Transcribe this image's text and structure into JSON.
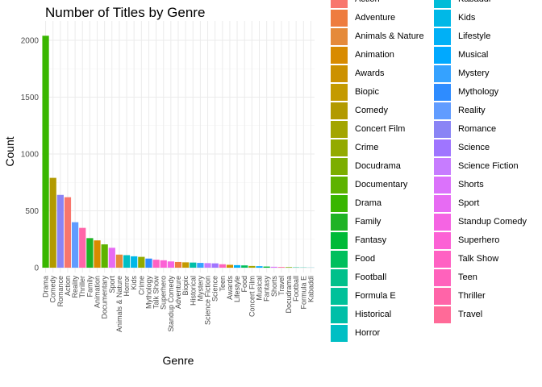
{
  "chart_data": {
    "type": "bar",
    "title": "Number of Titles by Genre",
    "xlabel": "Genre",
    "ylabel": "Count",
    "ylim": [
      0,
      2100
    ],
    "yticks": [
      0,
      500,
      1000,
      1500,
      2000
    ],
    "grid": true,
    "legend_position": "right",
    "categories": [
      "Drama",
      "Comedy",
      "Romance",
      "Action",
      "Reality",
      "Thriller",
      "Family",
      "Animation",
      "Documentary",
      "Sport",
      "Animals & Nature",
      "Horror",
      "Kids",
      "Crime",
      "Mythology",
      "Talk Show",
      "Superhero",
      "Standup Comedy",
      "Adventure",
      "Biopic",
      "Historical",
      "Mystery",
      "Science Fiction",
      "Science",
      "Teen",
      "Awards",
      "Lifestyle",
      "Food",
      "Concert Film",
      "Musical",
      "Fantasy",
      "Shorts",
      "Travel",
      "Docudrama",
      "Football",
      "Formula E",
      "Kabaddi"
    ],
    "values": [
      2040,
      790,
      640,
      620,
      400,
      350,
      260,
      240,
      205,
      175,
      115,
      110,
      100,
      95,
      80,
      70,
      65,
      55,
      50,
      47,
      45,
      42,
      40,
      38,
      30,
      25,
      22,
      20,
      15,
      13,
      10,
      8,
      6,
      5,
      3,
      2,
      1
    ],
    "legend": [
      {
        "label": "Action",
        "color": "#F8766D"
      },
      {
        "label": "Adventure",
        "color": "#EE7C3F"
      },
      {
        "label": "Animals & Nature",
        "color": "#E58A3A"
      },
      {
        "label": "Animation",
        "color": "#D88B00"
      },
      {
        "label": "Awards",
        "color": "#CC9100"
      },
      {
        "label": "Biopic",
        "color": "#C49A00"
      },
      {
        "label": "Comedy",
        "color": "#B29A00"
      },
      {
        "label": "Concert Film",
        "color": "#A3A500"
      },
      {
        "label": "Crime",
        "color": "#93AA00"
      },
      {
        "label": "Docudrama",
        "color": "#7CAE00"
      },
      {
        "label": "Documentary",
        "color": "#5EB300"
      },
      {
        "label": "Drama",
        "color": "#39B600"
      },
      {
        "label": "Family",
        "color": "#1FB326"
      },
      {
        "label": "Fantasy",
        "color": "#00BA38"
      },
      {
        "label": "Food",
        "color": "#00BF5D"
      },
      {
        "label": "Football",
        "color": "#00C08B"
      },
      {
        "label": "Formula E",
        "color": "#00C19A"
      },
      {
        "label": "Historical",
        "color": "#00BFA8"
      },
      {
        "label": "Horror",
        "color": "#00BFC4"
      },
      {
        "label": "Kabaddi",
        "color": "#00BCD8"
      },
      {
        "label": "Kids",
        "color": "#00B8E7"
      },
      {
        "label": "Lifestyle",
        "color": "#00B0F6"
      },
      {
        "label": "Musical",
        "color": "#00A9FF"
      },
      {
        "label": "Mystery",
        "color": "#35A2FF"
      },
      {
        "label": "Mythology",
        "color": "#2E8CFF"
      },
      {
        "label": "Reality",
        "color": "#619CFF"
      },
      {
        "label": "Romance",
        "color": "#8A84F5"
      },
      {
        "label": "Science",
        "color": "#9F75FF"
      },
      {
        "label": "Science Fiction",
        "color": "#C77CFF"
      },
      {
        "label": "Shorts",
        "color": "#DB72FB"
      },
      {
        "label": "Sport",
        "color": "#E76BF3"
      },
      {
        "label": "Standup Comedy",
        "color": "#F564E3"
      },
      {
        "label": "Superhero",
        "color": "#FC61D5"
      },
      {
        "label": "Talk Show",
        "color": "#FF61C3"
      },
      {
        "label": "Teen",
        "color": "#FF62BC"
      },
      {
        "label": "Thriller",
        "color": "#FF64A8"
      },
      {
        "label": "Travel",
        "color": "#FF6A98"
      }
    ]
  }
}
